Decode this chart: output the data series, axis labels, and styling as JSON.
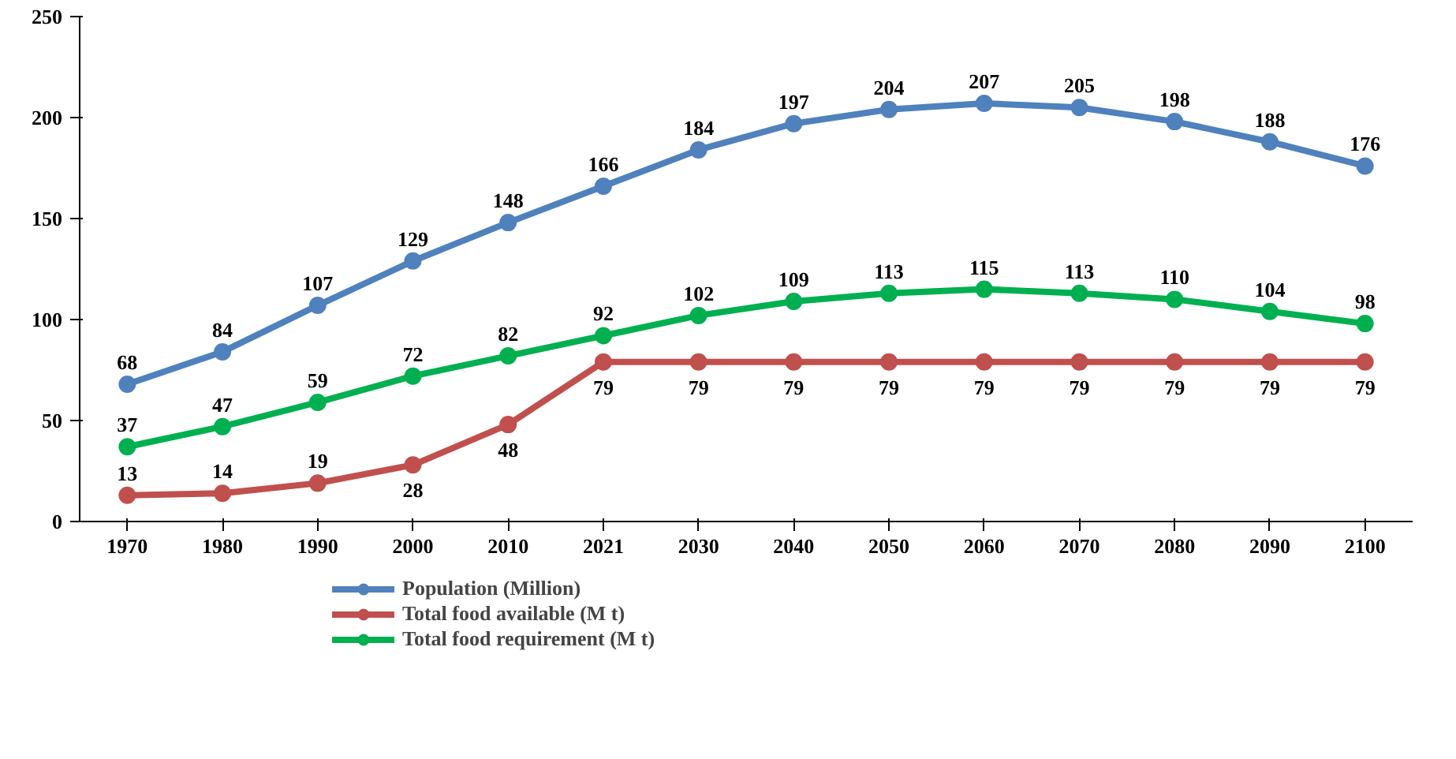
{
  "chart_data": {
    "type": "line",
    "categories": [
      "1970",
      "1980",
      "1990",
      "2000",
      "2010",
      "2021",
      "2030",
      "2040",
      "2050",
      "2060",
      "2070",
      "2080",
      "2090",
      "2100"
    ],
    "series": [
      {
        "name": "Population (Million)",
        "color": "#4f81bd",
        "values": [
          68,
          84,
          107,
          129,
          148,
          166,
          184,
          197,
          204,
          207,
          205,
          198,
          188,
          176
        ]
      },
      {
        "name": "Total food available (M t)",
        "color": "#c0504d",
        "values": [
          13,
          14,
          19,
          28,
          48,
          79,
          79,
          79,
          79,
          79,
          79,
          79,
          79,
          79
        ]
      },
      {
        "name": "Total food requirement (M t)",
        "color": "#00b050",
        "values": [
          37,
          47,
          59,
          72,
          82,
          92,
          102,
          109,
          113,
          115,
          113,
          110,
          104,
          98
        ]
      }
    ],
    "ylim": [
      0,
      250
    ],
    "yticks": [
      0,
      50,
      100,
      150,
      200,
      250
    ],
    "grid": false,
    "legend": "bottom",
    "marker": "circle",
    "line_style": "solid",
    "data_labels": true
  }
}
